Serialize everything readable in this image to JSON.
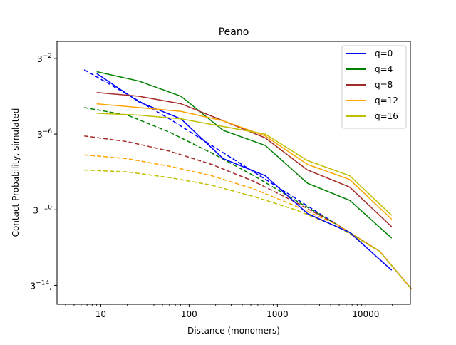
{
  "chart_data": {
    "type": "line",
    "title": "Peano",
    "xlabel": "Distance (monomers)",
    "ylabel": "Contact Probability, simulated",
    "xscale": "log10",
    "yscale": "log3",
    "xlim": [
      3.2,
      32000
    ],
    "ylim_exponent": [
      -15,
      -1.1
    ],
    "x_ticks": [
      {
        "value": 10,
        "label": "10"
      },
      {
        "value": 100,
        "label": "100"
      },
      {
        "value": 1000,
        "label": "1000"
      },
      {
        "value": 10000,
        "label": "10000"
      }
    ],
    "y_ticks": [
      {
        "exponent": -2,
        "label_base": "3",
        "label_exp": "−2",
        "label_suffix": ""
      },
      {
        "exponent": -6,
        "label_base": "3",
        "label_exp": "−6",
        "label_suffix": ""
      },
      {
        "exponent": -10,
        "label_base": "3",
        "label_exp": "−10",
        "label_suffix": ""
      },
      {
        "exponent": -14,
        "label_base": "3",
        "label_exp": "−14",
        "label_suffix": ","
      }
    ],
    "legend_position": "top-right",
    "grid": false,
    "series": [
      {
        "name": "q=0",
        "color": "#0000ff",
        "solid": {
          "x": [
            9,
            27,
            81,
            243,
            729,
            2187,
            6561,
            19683
          ],
          "y_exponent": [
            -2.8,
            -4.3,
            -5.2,
            -7.3,
            -8.2,
            -10.2,
            -11.2,
            -13.2
          ]
        },
        "dashed": {
          "x": [
            6.5,
            20,
            60,
            180,
            540,
            1600,
            4800,
            14400,
            33000
          ],
          "y_exponent": [
            -2.6,
            -3.9,
            -5.2,
            -6.6,
            -8.0,
            -9.4,
            -10.8,
            -12.2,
            -14.2
          ]
        }
      },
      {
        "name": "q=4",
        "color": "#008000",
        "solid": {
          "x": [
            9,
            27,
            81,
            243,
            729,
            2187,
            6561,
            19683
          ],
          "y_exponent": [
            -2.7,
            -3.2,
            -4.0,
            -5.8,
            -6.6,
            -8.6,
            -9.5,
            -11.5
          ]
        },
        "dashed": {
          "x": [
            6.5,
            20,
            60,
            180,
            540,
            1600,
            4800,
            14400,
            33000
          ],
          "y_exponent": [
            -4.6,
            -5.0,
            -5.9,
            -7.0,
            -8.2,
            -9.5,
            -10.8,
            -12.2,
            -14.2
          ]
        }
      },
      {
        "name": "q=8",
        "color": "#a52a2a",
        "solid": {
          "x": [
            9,
            27,
            81,
            243,
            729,
            2187,
            6561,
            19683
          ],
          "y_exponent": [
            -3.8,
            -4.0,
            -4.4,
            -5.3,
            -6.2,
            -7.9,
            -8.8,
            -10.9
          ]
        },
        "dashed": {
          "x": [
            6.5,
            20,
            60,
            180,
            540,
            1600,
            4800,
            14400,
            33000
          ],
          "y_exponent": [
            -6.1,
            -6.4,
            -6.9,
            -7.6,
            -8.5,
            -9.6,
            -10.8,
            -12.2,
            -14.2
          ]
        }
      },
      {
        "name": "q=12",
        "color": "#ffa500",
        "solid": {
          "x": [
            9,
            27,
            81,
            243,
            729,
            2187,
            6561,
            19683
          ],
          "y_exponent": [
            -4.4,
            -4.6,
            -4.8,
            -5.3,
            -6.1,
            -7.6,
            -8.4,
            -10.5
          ]
        },
        "dashed": {
          "x": [
            6.5,
            20,
            60,
            180,
            540,
            1600,
            4800,
            14400,
            33000
          ],
          "y_exponent": [
            -7.1,
            -7.3,
            -7.7,
            -8.2,
            -8.9,
            -9.8,
            -10.8,
            -12.2,
            -14.2
          ]
        }
      },
      {
        "name": "q=16",
        "color": "#bfbf00",
        "solid": {
          "x": [
            9,
            27,
            81,
            243,
            729,
            2187,
            6561,
            19683
          ],
          "y_exponent": [
            -4.9,
            -5.0,
            -5.2,
            -5.6,
            -6.0,
            -7.4,
            -8.2,
            -10.3
          ]
        },
        "dashed": {
          "x": [
            6.5,
            20,
            60,
            180,
            540,
            1600,
            4800,
            14400,
            33000
          ],
          "y_exponent": [
            -7.9,
            -8.0,
            -8.3,
            -8.7,
            -9.3,
            -10.0,
            -10.9,
            -12.2,
            -14.2
          ]
        }
      }
    ]
  }
}
